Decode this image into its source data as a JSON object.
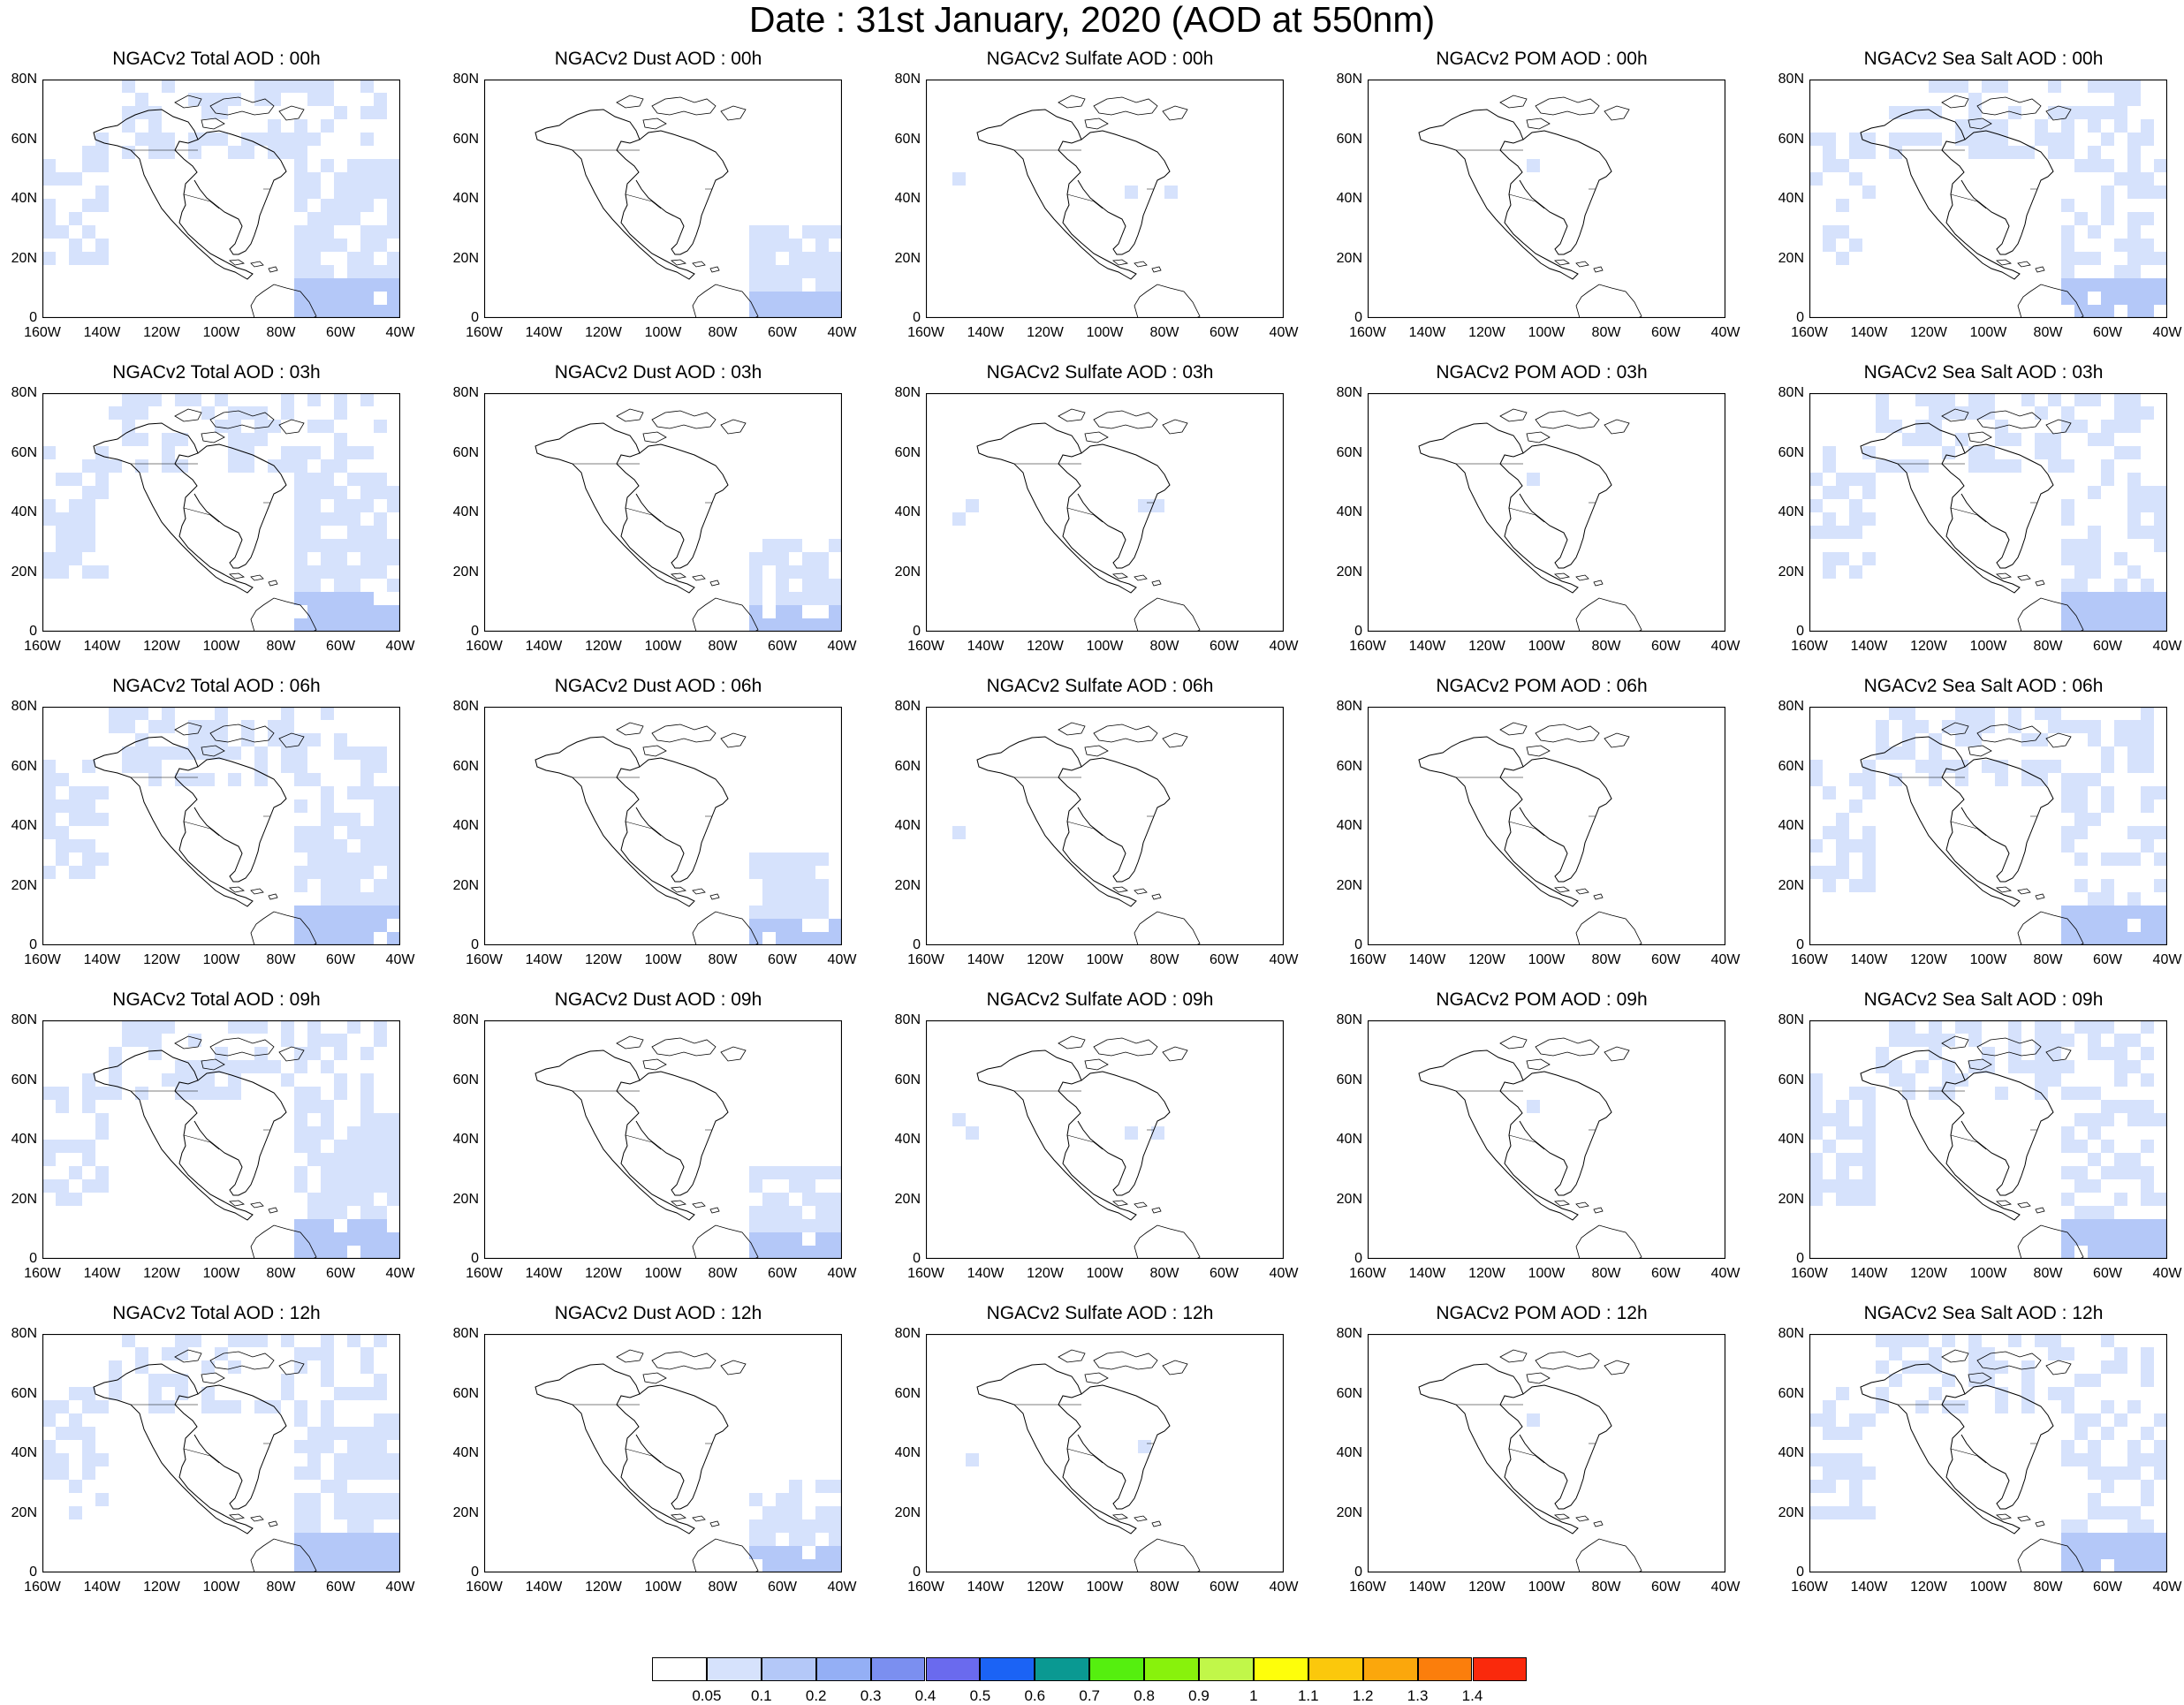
{
  "title": "Date : 31st January, 2020 (AOD at 550nm)",
  "y_ticks": [
    "80N",
    "60N",
    "40N",
    "20N",
    "0"
  ],
  "x_ticks": [
    "160W",
    "140W",
    "120W",
    "100W",
    "80W",
    "60W",
    "40W"
  ],
  "panel_titles": [
    [
      "NGACv2 Total AOD : 00h",
      "NGACv2 Dust AOD : 00h",
      "NGACv2 Sulfate AOD : 00h",
      "NGACv2 POM AOD : 00h",
      "NGACv2 Sea Salt AOD : 00h"
    ],
    [
      "NGACv2 Total AOD : 03h",
      "NGACv2 Dust AOD : 03h",
      "NGACv2 Sulfate AOD : 03h",
      "NGACv2 POM AOD : 03h",
      "NGACv2 Sea Salt AOD : 03h"
    ],
    [
      "NGACv2 Total AOD : 06h",
      "NGACv2 Dust AOD : 06h",
      "NGACv2 Sulfate AOD : 06h",
      "NGACv2 POM AOD : 06h",
      "NGACv2 Sea Salt AOD : 06h"
    ],
    [
      "NGACv2 Total AOD : 09h",
      "NGACv2 Dust AOD : 09h",
      "NGACv2 Sulfate AOD : 09h",
      "NGACv2 POM AOD : 09h",
      "NGACv2 Sea Salt  AOD : 09h"
    ],
    [
      "NGACv2 Total AOD  : 12h",
      "NGACv2 Dust AOD : 12h",
      "NGACv2 Sulfate AOD : 12h",
      "NGACv2 POM  AOD : 12h",
      "NGACv2 Sea Salt  AOD : 12h"
    ]
  ],
  "colorbar": {
    "colors": [
      "#ffffff",
      "#d6e2fc",
      "#b4c8f8",
      "#94aff5",
      "#7b8ff0",
      "#6a6aee",
      "#1b63f5",
      "#0a9992",
      "#55ef0f",
      "#88f20c",
      "#c1f749",
      "#fefe0a",
      "#fbc80c",
      "#fba70c",
      "#fb7e0c",
      "#fa290c"
    ],
    "labels": [
      "0.05",
      "0.1",
      "0.2",
      "0.3",
      "0.4",
      "0.5",
      "0.6",
      "0.7",
      "0.8",
      "0.9",
      "1",
      "1.1",
      "1.2",
      "1.3",
      "1.4"
    ]
  },
  "fill_colors": {
    "light": "#d6e2fc",
    "medium": "#b4c8f8"
  }
}
